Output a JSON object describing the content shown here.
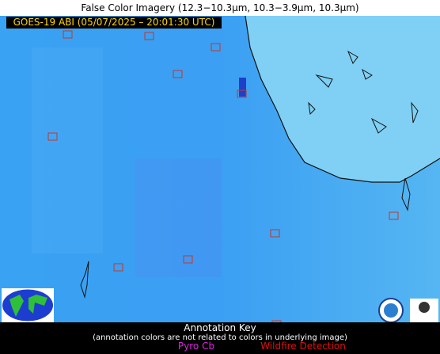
{
  "header": {
    "title": "False Color Imagery (12.3−10.3µm, 10.3−3.9µm, 10.3µm)",
    "product": "GOES-19 ABI (05/07/2025 – 20:01:30 UTC)"
  },
  "annotation_key": {
    "title": "Annotation Key",
    "note": "(annotation colors are not related to colors in underlying image)",
    "items": [
      "Pyro Cb",
      "Wildfire Detection"
    ]
  }
}
